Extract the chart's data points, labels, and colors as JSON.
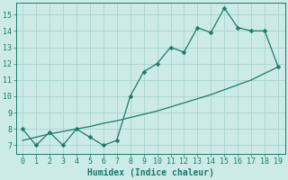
{
  "xlabel": "Humidex (Indice chaleur)",
  "bg_color": "#cceae8",
  "grid_color": "#aad4d0",
  "line_color": "#1a7a6a",
  "spine_color": "#1a7a6a",
  "xlim": [
    -0.5,
    19.5
  ],
  "ylim": [
    6.5,
    15.7
  ],
  "xticks": [
    0,
    1,
    2,
    3,
    4,
    5,
    6,
    7,
    8,
    9,
    10,
    11,
    12,
    13,
    14,
    15,
    16,
    17,
    18,
    19
  ],
  "yticks": [
    7,
    8,
    9,
    10,
    11,
    12,
    13,
    14,
    15
  ],
  "x_data": [
    0,
    1,
    2,
    3,
    4,
    5,
    6,
    7,
    8,
    9,
    10,
    11,
    12,
    13,
    14,
    15,
    16,
    17,
    18,
    19
  ],
  "y_zigzag": [
    8.0,
    7.0,
    7.8,
    7.0,
    8.0,
    7.5,
    7.0,
    7.3,
    10.0,
    11.5,
    12.0,
    13.0,
    12.7,
    14.2,
    13.9,
    15.4,
    14.2,
    14.0,
    14.0,
    11.8
  ],
  "y_trend": [
    7.3,
    7.5,
    7.7,
    7.85,
    8.0,
    8.15,
    8.35,
    8.5,
    8.7,
    8.9,
    9.1,
    9.35,
    9.6,
    9.85,
    10.1,
    10.4,
    10.7,
    11.0,
    11.4,
    11.8
  ],
  "markersize": 2.5,
  "linewidth": 0.9,
  "tick_fontsize": 6,
  "xlabel_fontsize": 7
}
